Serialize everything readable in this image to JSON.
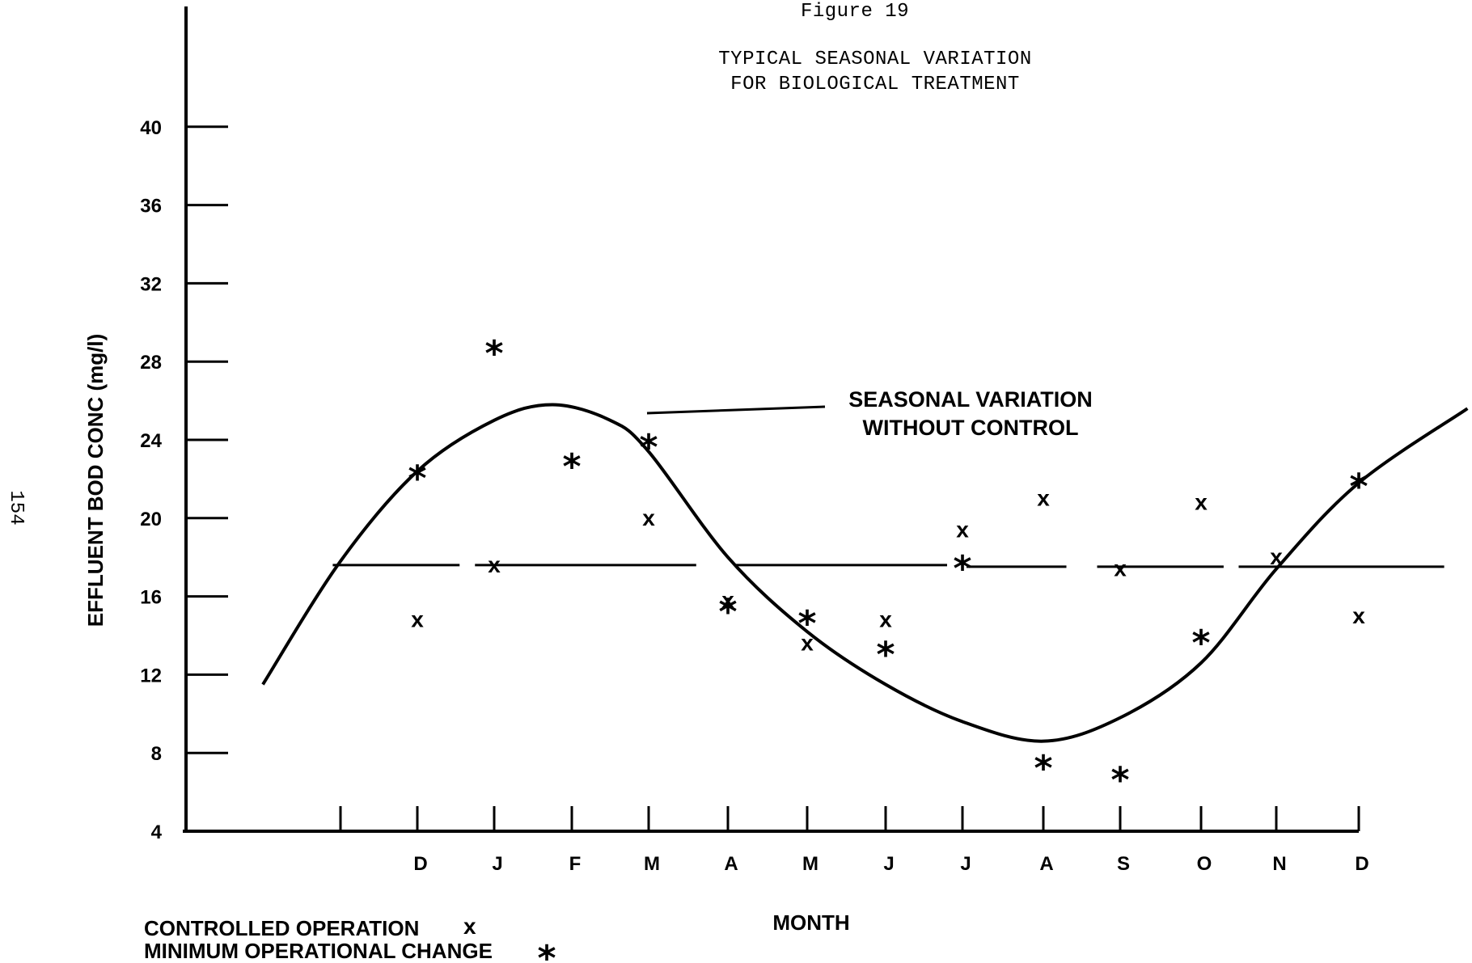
{
  "figure_label": "Figure 19",
  "page_number": "154",
  "chart_data": {
    "type": "scatter",
    "title": "TYPICAL SEASONAL VARIATION FOR BIOLOGICAL TREATMENT",
    "title_lines": [
      "TYPICAL SEASONAL VARIATION",
      "FOR BIOLOGICAL TREATMENT"
    ],
    "xlabel": "MONTH",
    "ylabel": "EFFLUENT BOD CONC (mg/l)",
    "categories": [
      "D",
      "J",
      "F",
      "M",
      "A",
      "M",
      "J",
      "J",
      "A",
      "S",
      "O",
      "N",
      "D"
    ],
    "y_ticks": [
      "4",
      "8",
      "12",
      "16",
      "20",
      "24",
      "28",
      "32",
      "36",
      "40"
    ],
    "ylim": [
      4,
      40
    ],
    "annotation_lines": [
      "SEASONAL VARIATION",
      "WITHOUT CONTROL"
    ],
    "legend": {
      "controlled_label": "CONTROLLED OPERATION",
      "controlled_symbol": "x",
      "minimum_label": "MINIMUM OPERATIONAL CHANGE",
      "minimum_symbol": "*"
    },
    "series": [
      {
        "name": "CONTROLLED OPERATION",
        "marker": "x",
        "points": [
          {
            "x": 1,
            "y": 14.8
          },
          {
            "x": 2,
            "y": 17.6
          },
          {
            "x": 4,
            "y": 20.0
          },
          {
            "x": 5,
            "y": 15.8
          },
          {
            "x": 6,
            "y": 13.6
          },
          {
            "x": 7,
            "y": 14.8
          },
          {
            "x": 8,
            "y": 19.4
          },
          {
            "x": 9,
            "y": 21.0
          },
          {
            "x": 10,
            "y": 17.4
          },
          {
            "x": 11,
            "y": 20.8
          },
          {
            "x": 12,
            "y": 18.0
          },
          {
            "x": 13,
            "y": 15.0
          }
        ]
      },
      {
        "name": "MINIMUM OPERATIONAL CHANGE",
        "marker": "*",
        "points": [
          {
            "x": 1,
            "y": 22.4
          },
          {
            "x": 2,
            "y": 28.8
          },
          {
            "x": 3,
            "y": 23.0
          },
          {
            "x": 4,
            "y": 24.0
          },
          {
            "x": 5,
            "y": 15.6
          },
          {
            "x": 6,
            "y": 15.0
          },
          {
            "x": 7,
            "y": 13.4
          },
          {
            "x": 8,
            "y": 17.8
          },
          {
            "x": 9,
            "y": 7.6
          },
          {
            "x": 10,
            "y": 7.0
          },
          {
            "x": 11,
            "y": 14.0
          },
          {
            "x": 13,
            "y": 22.0
          }
        ]
      },
      {
        "name": "SEASONAL VARIATION WITHOUT CONTROL",
        "marker": "line",
        "points": [
          {
            "x": -1.0,
            "y": 11.5
          },
          {
            "x": 0.0,
            "y": 17.8
          },
          {
            "x": 1.0,
            "y": 22.4
          },
          {
            "x": 2.0,
            "y": 25.0
          },
          {
            "x": 2.75,
            "y": 25.8
          },
          {
            "x": 3.5,
            "y": 25.0
          },
          {
            "x": 4.0,
            "y": 23.4
          },
          {
            "x": 5.0,
            "y": 18.0
          },
          {
            "x": 6.0,
            "y": 14.2
          },
          {
            "x": 7.0,
            "y": 11.5
          },
          {
            "x": 8.0,
            "y": 9.6
          },
          {
            "x": 9.0,
            "y": 8.6
          },
          {
            "x": 10.0,
            "y": 9.8
          },
          {
            "x": 11.0,
            "y": 12.6
          },
          {
            "x": 12.0,
            "y": 17.4
          },
          {
            "x": 13.0,
            "y": 21.8
          },
          {
            "x": 14.4,
            "y": 25.6
          }
        ]
      },
      {
        "name": "controlled level",
        "marker": "dashed-line",
        "y": 17.6
      }
    ]
  }
}
